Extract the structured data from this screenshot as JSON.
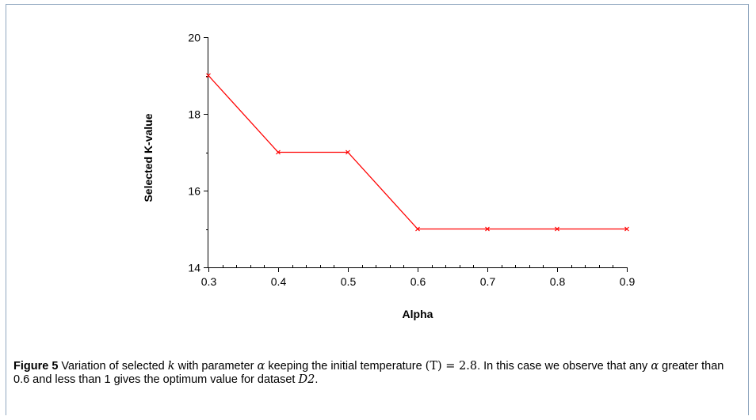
{
  "chart_data": {
    "type": "line",
    "xlabel": "Alpha",
    "ylabel": "Selected K-value",
    "x": [
      0.3,
      0.4,
      0.5,
      0.6,
      0.7,
      0.8,
      0.9
    ],
    "x_tick_labels": [
      "0.3",
      "0.4",
      "0.5",
      "0.6",
      "0.7",
      "0.8",
      "0.9"
    ],
    "y_ticks": [
      14,
      16,
      18,
      20
    ],
    "xlim": [
      0.3,
      0.9
    ],
    "ylim": [
      14,
      20
    ],
    "series": [
      {
        "values": [
          19,
          17,
          17,
          15,
          15,
          15,
          15
        ],
        "color": "#ff0000",
        "marker": "x"
      }
    ],
    "grid": false,
    "legend": "none"
  },
  "caption": {
    "label": "Figure 5",
    "t1": " Variation of selected ",
    "m1": "k",
    "t2": " with parameter ",
    "m2": "α",
    "t3": " keeping the initial temperature ",
    "m3": "(T) = 2.8",
    "t4": ". In this case we observe that any ",
    "m4": "α",
    "t5": " greater than 0.6 and less than 1 gives the optimum value for dataset ",
    "m5": "D2",
    "t6": "."
  }
}
